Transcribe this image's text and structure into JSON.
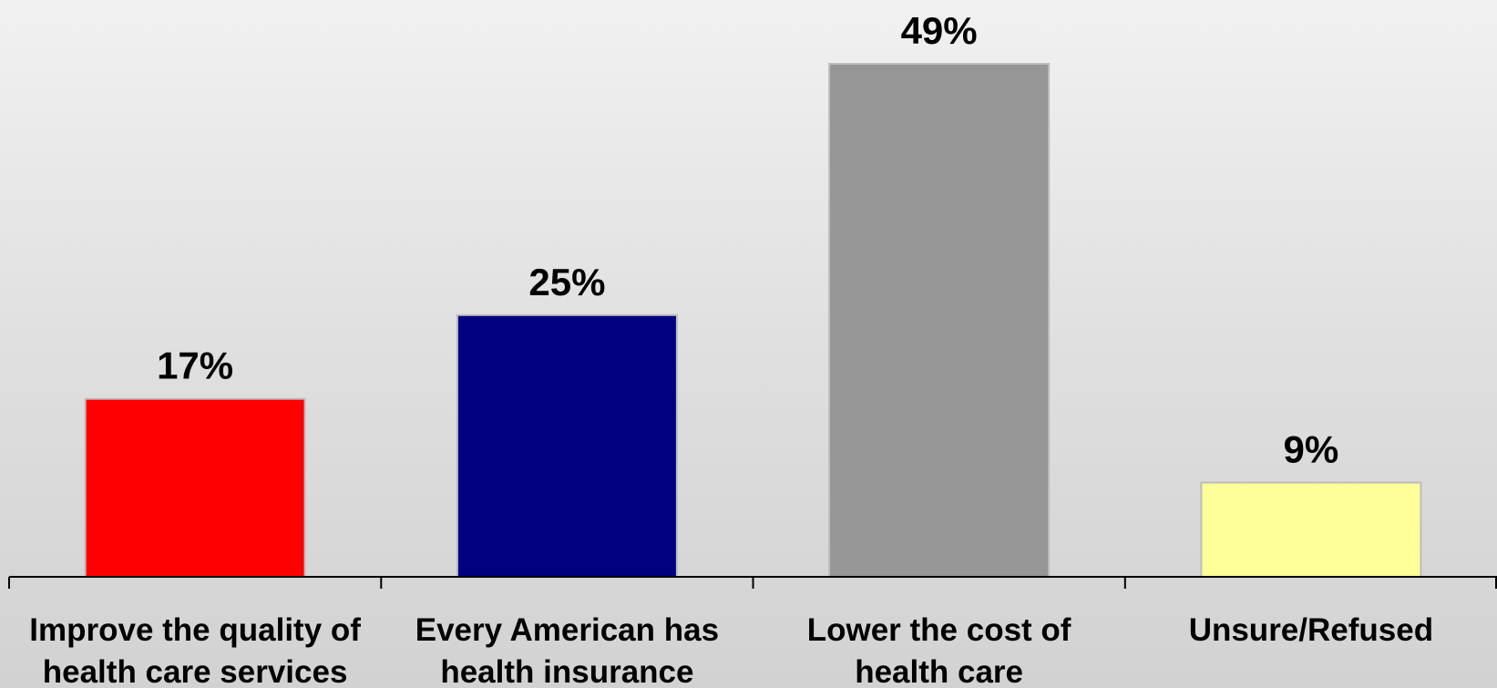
{
  "chart_data": {
    "type": "bar",
    "title": "",
    "xlabel": "",
    "ylabel": "",
    "categories": [
      [
        "Improve the quality of",
        "health care services"
      ],
      [
        "Every American has",
        "health insurance"
      ],
      [
        "Lower the cost of",
        "health care"
      ],
      [
        "Unsure/Refused"
      ]
    ],
    "values": [
      17,
      25,
      49,
      9
    ],
    "data_labels": [
      "17%",
      "25%",
      "49%",
      "9%"
    ],
    "unit": "%",
    "ylim": [
      0,
      49
    ],
    "grid": false,
    "legend": "none",
    "colors": [
      "#ff0000",
      "#000080",
      "#969696",
      "#ffff99"
    ],
    "bar_border_color": "#bdbdbd",
    "axis_color": "#000000"
  }
}
